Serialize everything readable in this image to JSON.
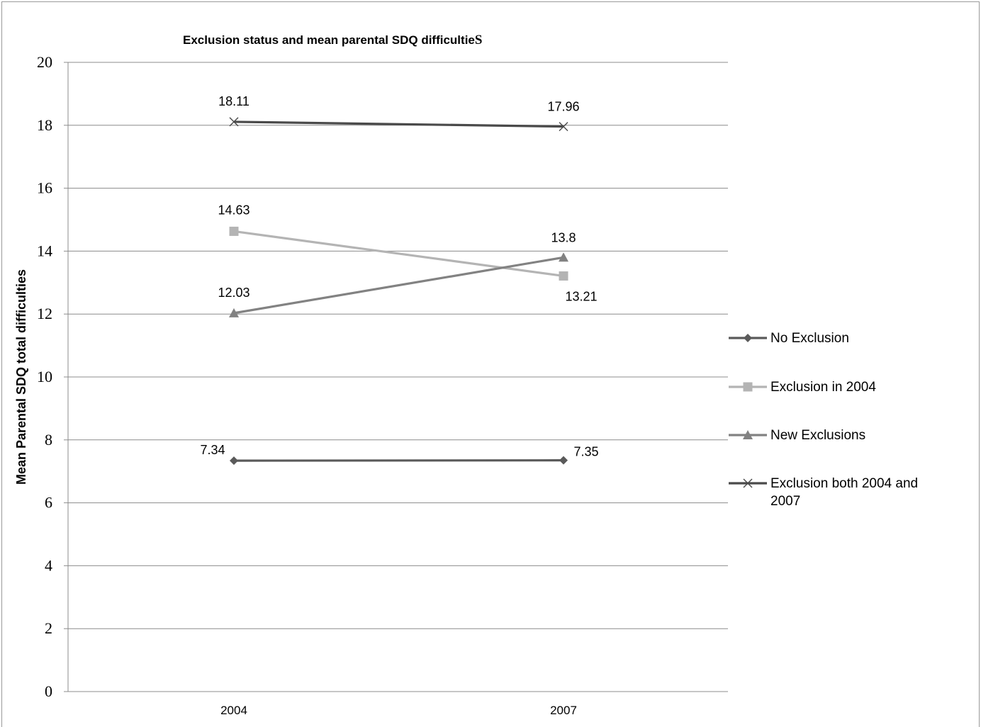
{
  "chart_data": {
    "type": "line",
    "title_main": "Exclusion status and mean parental SDQ difficultie",
    "title_last_char": "S",
    "ylabel": "Mean Parental SDQ total difficulties",
    "xlabel": "",
    "categories": [
      "2004",
      "2007"
    ],
    "ylim": [
      0,
      20
    ],
    "yticks": [
      0,
      2,
      4,
      6,
      8,
      10,
      12,
      14,
      16,
      18,
      20
    ],
    "grid": "horizontal",
    "legend_position": "right",
    "series": [
      {
        "name": "No Exclusion",
        "values": [
          7.34,
          7.35
        ],
        "labels": [
          "7.34",
          "7.35"
        ],
        "marker": "diamond",
        "color": "#5a5a5a"
      },
      {
        "name": "Exclusion in 2004",
        "values": [
          14.63,
          13.21
        ],
        "labels": [
          "14.63",
          "13.21"
        ],
        "marker": "square",
        "color": "#b4b4b4"
      },
      {
        "name": "New Exclusions",
        "values": [
          12.03,
          13.8
        ],
        "labels": [
          "12.03",
          "13.8"
        ],
        "marker": "triangle",
        "color": "#828282"
      },
      {
        "name": "Exclusion both 2004 and 2007",
        "legend_lines": [
          "Exclusion both 2004 and",
          "2007"
        ],
        "values": [
          18.11,
          17.96
        ],
        "labels": [
          "18.11",
          "17.96"
        ],
        "marker": "x",
        "color": "#4a4a4a"
      }
    ]
  }
}
